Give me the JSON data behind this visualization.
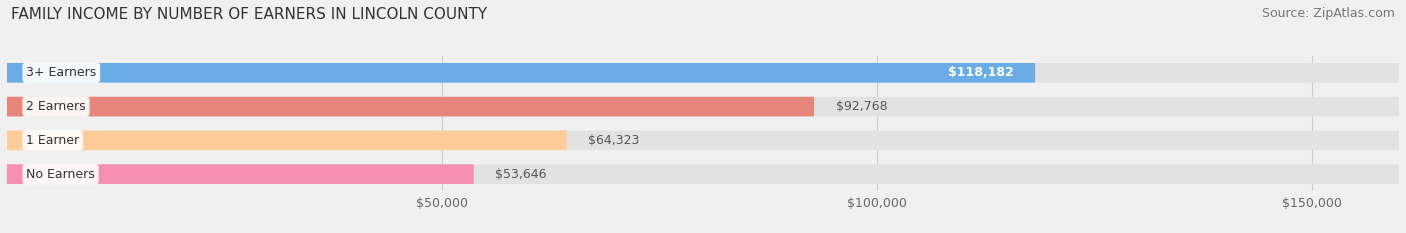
{
  "title": "FAMILY INCOME BY NUMBER OF EARNERS IN LINCOLN COUNTY",
  "source": "Source: ZipAtlas.com",
  "categories": [
    "No Earners",
    "1 Earner",
    "2 Earners",
    "3+ Earners"
  ],
  "values": [
    53646,
    64323,
    92768,
    118182
  ],
  "bar_colors": [
    "#f48fb1",
    "#ffcc99",
    "#e8857a",
    "#6aace6"
  ],
  "label_colors": [
    "#555555",
    "#555555",
    "#555555",
    "#ffffff"
  ],
  "xlim": [
    0,
    160000
  ],
  "xticks": [
    50000,
    100000,
    150000
  ],
  "xtick_labels": [
    "$50,000",
    "$100,000",
    "$150,000"
  ],
  "value_labels": [
    "$53,646",
    "$64,323",
    "$92,768",
    "$118,182"
  ],
  "bar_height": 0.58,
  "background_color": "#f0f0f0",
  "bar_bg_color": "#e2e2e2",
  "title_fontsize": 11,
  "source_fontsize": 9,
  "label_fontsize": 9,
  "value_fontsize": 9,
  "tick_fontsize": 9
}
